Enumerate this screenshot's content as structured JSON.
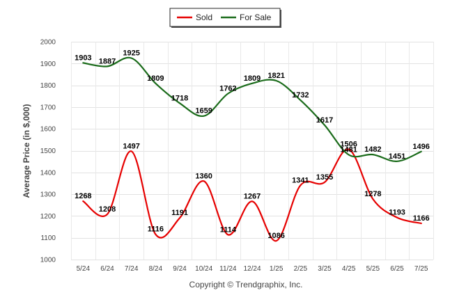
{
  "chart_data": {
    "type": "line",
    "title": "",
    "xlabel": "",
    "ylabel": "Average Price (in $,000)",
    "ylim": [
      1000,
      2000
    ],
    "yticks": [
      1000,
      1100,
      1200,
      1300,
      1400,
      1500,
      1600,
      1700,
      1800,
      1900,
      2000
    ],
    "categories": [
      "5/24",
      "6/24",
      "7/24",
      "8/24",
      "9/24",
      "10/24",
      "11/24",
      "12/24",
      "1/25",
      "2/25",
      "3/25",
      "4/25",
      "5/25",
      "6/25",
      "7/25"
    ],
    "grid": true,
    "legend_position": "top",
    "series": [
      {
        "name": "Sold",
        "color": "#e60000",
        "values": [
          1268,
          1208,
          1497,
          1116,
          1191,
          1360,
          1114,
          1267,
          1086,
          1341,
          1355,
          1506,
          1278,
          1193,
          1166
        ]
      },
      {
        "name": "For Sale",
        "color": "#1a6b1a",
        "values": [
          1903,
          1887,
          1925,
          1809,
          1718,
          1659,
          1762,
          1809,
          1821,
          1732,
          1617,
          1481,
          1482,
          1451,
          1496
        ]
      }
    ]
  },
  "footer": {
    "copyright": "Copyright © Trendgraphix, Inc."
  }
}
